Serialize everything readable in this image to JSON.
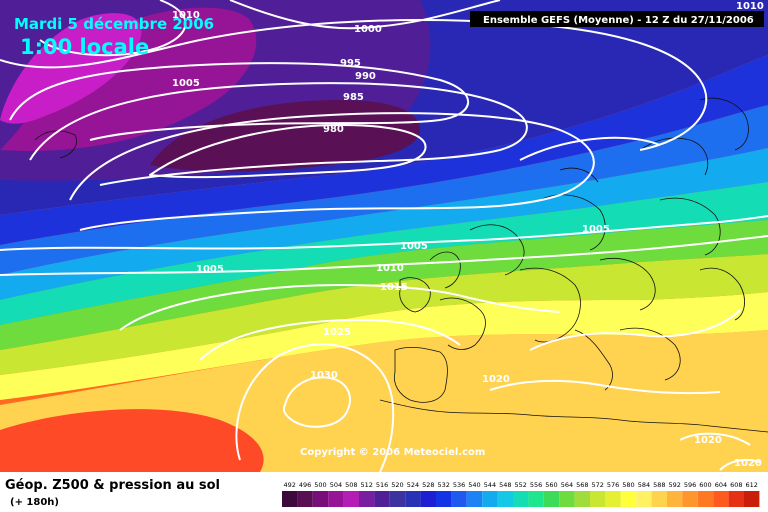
{
  "map": {
    "date_line": "Mardi 5 décembre 2006",
    "time_line": "1:00 locale",
    "model_info": "Ensemble GEFS (Moyenne)  - 12 Z du 27/11/2006",
    "copyright": "Copyright © 2006 Meteociel.com"
  },
  "footer": {
    "title": "Géop. Z500 & pression au sol",
    "subtitle": "(+ 180h)"
  },
  "isobar_labels": [
    "1010",
    "1000",
    "1005",
    "995",
    "990",
    "985",
    "980",
    "1005",
    "1005",
    "1010",
    "1015",
    "1005",
    "1025",
    "1030",
    "1020",
    "1020",
    "1020",
    "1010"
  ],
  "legend": {
    "values": [
      "492",
      "496",
      "500",
      "504",
      "508",
      "512",
      "516",
      "520",
      "524",
      "528",
      "532",
      "536",
      "540",
      "544",
      "548",
      "552",
      "556",
      "560",
      "564",
      "568",
      "572",
      "576",
      "580",
      "584",
      "588",
      "592",
      "596",
      "600",
      "604",
      "608",
      "612"
    ],
    "colors": [
      "#3c0a3c",
      "#5a0f55",
      "#780f78",
      "#961496",
      "#b41eb4",
      "#781ea0",
      "#501e96",
      "#3c32a0",
      "#2832b4",
      "#1e1ed2",
      "#1432e6",
      "#1e5af0",
      "#1e82f5",
      "#14aaf0",
      "#14c8e6",
      "#14dcb4",
      "#1ee68c",
      "#3cdc5a",
      "#6edc3c",
      "#a0dc3c",
      "#c8e632",
      "#e6f032",
      "#ffff3c",
      "#fff064",
      "#ffd250",
      "#ffb43c",
      "#ff962d",
      "#ff7823",
      "#ff5a1e",
      "#e63214",
      "#c81e0a"
    ]
  }
}
